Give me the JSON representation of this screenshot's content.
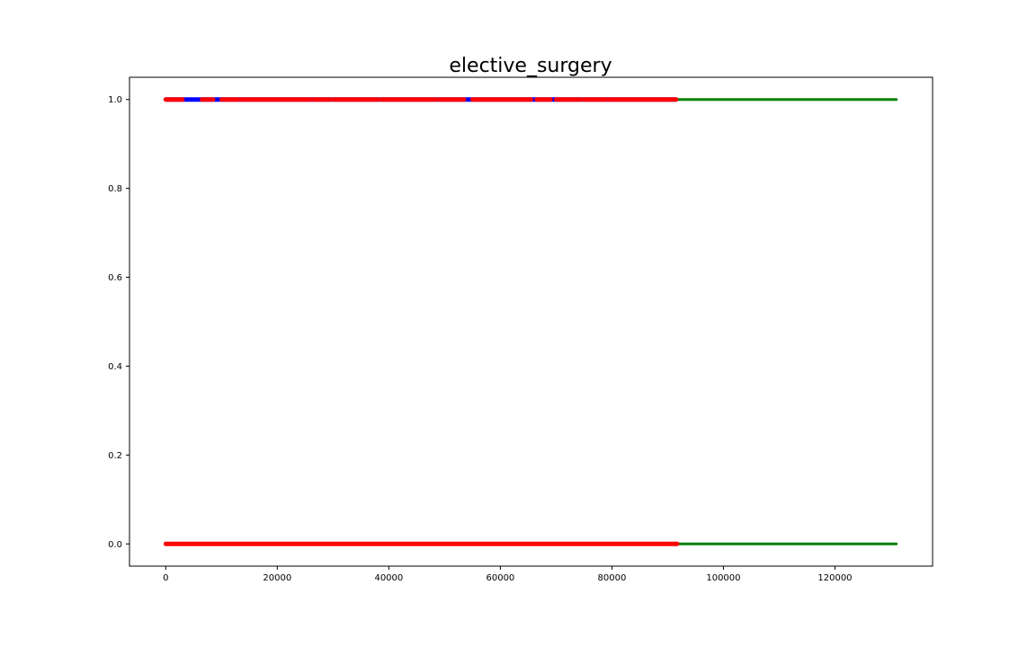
{
  "chart_data": {
    "type": "scatter",
    "title": "elective_surgery",
    "xlabel": "",
    "ylabel": "",
    "xlim": [
      -6500,
      137500
    ],
    "ylim": [
      -0.05,
      1.05
    ],
    "x_ticks": [
      0,
      20000,
      40000,
      60000,
      80000,
      100000,
      120000
    ],
    "x_tick_labels": [
      "0",
      "20000",
      "40000",
      "60000",
      "80000",
      "100000",
      "120000"
    ],
    "y_ticks": [
      0.0,
      0.2,
      0.4,
      0.6,
      0.8,
      1.0
    ],
    "y_tick_labels": [
      "0.0",
      "0.2",
      "0.4",
      "0.6",
      "0.8",
      "1.0"
    ],
    "grid": false,
    "legend": false,
    "series": [
      {
        "color": "#008000",
        "marker": "line",
        "segments": [
          {
            "x": [
              0,
              131000
            ],
            "y": 0
          },
          {
            "x": [
              0,
              131000
            ],
            "y": 1
          }
        ]
      },
      {
        "color": "#0000ff",
        "marker": "dense-points",
        "segments": [
          {
            "x": [
              0,
              91500
            ],
            "y": 1
          }
        ]
      },
      {
        "color": "#ff0000",
        "marker": "dense-points",
        "segments": [
          {
            "x": [
              0,
              91700
            ],
            "y": 0
          },
          {
            "x": [
              0,
              3000
            ],
            "y": 1
          },
          {
            "x": [
              6500,
              8500
            ],
            "y": 1
          },
          {
            "x": [
              10000,
              13000
            ],
            "y": 1
          },
          {
            "x": [
              13500,
              26000
            ],
            "y": 1
          },
          {
            "x": [
              26500,
              29500
            ],
            "y": 1
          },
          {
            "x": [
              30000,
              38000
            ],
            "y": 1
          },
          {
            "x": [
              38500,
              48500
            ],
            "y": 1
          },
          {
            "x": [
              49000,
              53500
            ],
            "y": 1
          },
          {
            "x": [
              55000,
              65500
            ],
            "y": 1
          },
          {
            "x": [
              66500,
              69000
            ],
            "y": 1
          },
          {
            "x": [
              70000,
              74500
            ],
            "y": 1
          },
          {
            "x": [
              75000,
              79000
            ],
            "y": 1
          },
          {
            "x": [
              79500,
              91500
            ],
            "y": 1
          }
        ]
      }
    ]
  }
}
